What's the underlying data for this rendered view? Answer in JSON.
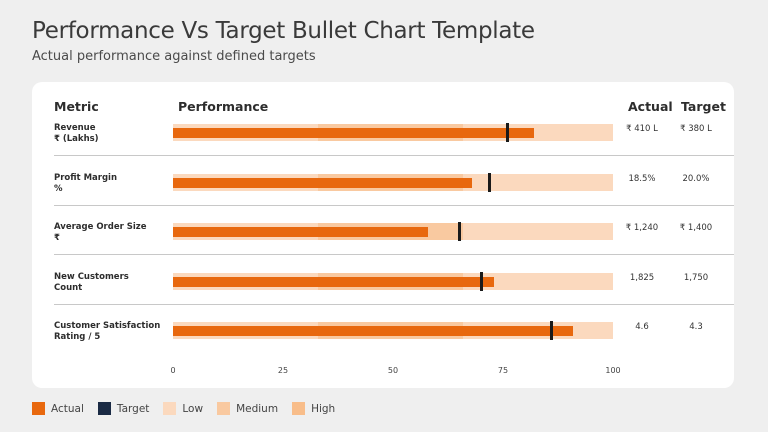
{
  "header": {
    "title": "Performance Vs Target Bullet Chart Template",
    "subtitle": "Actual performance against defined targets"
  },
  "columns": {
    "metric": "Metric",
    "performance": "Performance",
    "actual": "Actual",
    "target": "Target"
  },
  "colors": {
    "actual": "#e8680e",
    "target": "#1a2a44",
    "low": "#fbd9be",
    "medium": "#f9c9a0",
    "high": "#f8bd8a"
  },
  "chart_data": {
    "type": "bar",
    "subtype": "bullet",
    "xlim": [
      0,
      100
    ],
    "ticks": [
      "0",
      "25",
      "50",
      "75",
      "100"
    ],
    "tick_values": [
      0,
      25,
      50,
      75,
      100
    ],
    "ranges": {
      "low": 33,
      "medium": 66,
      "high": 100
    },
    "rows": [
      {
        "label_line1": "Revenue",
        "label_line2": "₹ (Lakhs)",
        "actual": 82,
        "target": 76,
        "actual_text": "₹ 410 L",
        "target_text": "₹ 380 L"
      },
      {
        "label_line1": "Profit Margin",
        "label_line2": "%",
        "actual": 68,
        "target": 72,
        "actual_text": "18.5%",
        "target_text": "20.0%"
      },
      {
        "label_line1": "Average Order Size",
        "label_line2": "₹",
        "actual": 58,
        "target": 65,
        "actual_text": "₹ 1,240",
        "target_text": "₹ 1,400"
      },
      {
        "label_line1": "New Customers",
        "label_line2": "Count",
        "actual": 73,
        "target": 70,
        "actual_text": "1,825",
        "target_text": "1,750"
      },
      {
        "label_line1": "Customer Satisfaction",
        "label_line2": "Rating / 5",
        "actual": 91,
        "target": 86,
        "actual_text": "4.6",
        "target_text": "4.3"
      }
    ],
    "legend": [
      "Actual",
      "Target",
      "Low",
      "Medium",
      "High"
    ]
  }
}
